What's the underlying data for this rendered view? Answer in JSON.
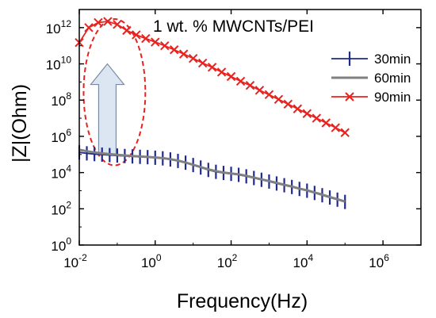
{
  "chart_data": {
    "type": "line",
    "title": "1 wt. % MWCNTs/PEI",
    "xlabel": "Frequency(Hz)",
    "ylabel": "|Z|(Ohm)",
    "x_scale": "log",
    "y_scale": "log",
    "xlim": [
      0.01,
      10000000
    ],
    "ylim": [
      1,
      10000000000000
    ],
    "x_ticks": [
      {
        "value": 0.01,
        "base": "10",
        "exp": "-2"
      },
      {
        "value": 1,
        "base": "10",
        "exp": "0"
      },
      {
        "value": 100,
        "base": "10",
        "exp": "2"
      },
      {
        "value": 10000,
        "base": "10",
        "exp": "4"
      },
      {
        "value": 1000000,
        "base": "10",
        "exp": "6"
      }
    ],
    "y_ticks": [
      {
        "value": 1,
        "base": "10",
        "exp": "0"
      },
      {
        "value": 100,
        "base": "10",
        "exp": "2"
      },
      {
        "value": 10000,
        "base": "10",
        "exp": "4"
      },
      {
        "value": 1000000,
        "base": "10",
        "exp": "6"
      },
      {
        "value": 100000000,
        "base": "10",
        "exp": "8"
      },
      {
        "value": 10000000000,
        "base": "10",
        "exp": "10"
      },
      {
        "value": 1000000000000,
        "base": "10",
        "exp": "12"
      }
    ],
    "grid": false,
    "legend_position": "top-right",
    "series": [
      {
        "name": "30min",
        "color": "#1f2a8c",
        "marker": "vertical-bar",
        "x": [
          0.01,
          0.0158,
          0.0251,
          0.0398,
          0.0631,
          0.1,
          0.158,
          0.251,
          0.398,
          0.631,
          1,
          1.58,
          2.51,
          3.98,
          6.31,
          10,
          15.8,
          25.1,
          39.8,
          63.1,
          100,
          158,
          251,
          398,
          631,
          1000,
          1580,
          2510,
          3980,
          6310,
          10000,
          15800,
          25100,
          39800,
          63100,
          100000
        ],
        "y": [
          130000,
          115000,
          105000,
          98000,
          92000,
          87000,
          82000,
          78000,
          74000,
          71000,
          66000,
          61000,
          53000,
          44000,
          35000,
          26000,
          19000,
          14000,
          11000,
          9500,
          8500,
          7500,
          6200,
          5000,
          4000,
          3200,
          2500,
          2000,
          1600,
          1250,
          1000,
          750,
          560,
          420,
          320,
          240
        ]
      },
      {
        "name": "60min",
        "color": "#808080",
        "marker": "none",
        "x": [
          0.01,
          0.0158,
          0.0251,
          0.0398,
          0.0631,
          0.1,
          0.158,
          0.251,
          0.398,
          0.631,
          1,
          1.58,
          2.51,
          3.98,
          6.31,
          10,
          15.8,
          25.1,
          39.8,
          63.1,
          100,
          158,
          251,
          398,
          631,
          1000,
          1580,
          2510,
          3980,
          6310,
          10000,
          15800,
          25100,
          39800,
          63100,
          100000
        ],
        "y": [
          180000,
          150000,
          130000,
          115000,
          104000,
          95000,
          88000,
          82000,
          77000,
          73000,
          68000,
          63000,
          55000,
          46000,
          36000,
          27000,
          20000,
          15000,
          12000,
          10000,
          9000,
          8000,
          6600,
          5300,
          4200,
          3400,
          2700,
          2100,
          1700,
          1300,
          1050,
          800,
          600,
          450,
          340,
          250
        ]
      },
      {
        "name": "90min",
        "color": "#e8221e",
        "marker": "x",
        "x": [
          0.01,
          0.0178,
          0.0316,
          0.0562,
          0.1,
          0.178,
          0.316,
          0.562,
          1,
          1.78,
          3.16,
          5.62,
          10,
          17.8,
          31.6,
          56.2,
          100,
          178,
          316,
          562,
          1000,
          1780,
          3160,
          5620,
          10000,
          17800,
          31600,
          56200,
          100000
        ],
        "y": [
          150000000000,
          1000000000000,
          1900000000000,
          2200000000000,
          1500000000000,
          700000000000,
          400000000000,
          250000000000,
          160000000000,
          100000000000,
          60000000000,
          35000000000,
          20000000000,
          11000000000,
          6500000000,
          3500000000,
          2000000000,
          1100000000,
          650000000,
          350000000,
          200000000,
          110000000,
          60000000,
          33000000,
          18000000,
          10000000,
          5500000,
          3000000,
          1600000
        ]
      }
    ],
    "annotations": [
      {
        "type": "arrow",
        "direction": "up",
        "x": 0.055,
        "y_from": 100000,
        "y_to": 10000000000,
        "fill": "#dce6f2",
        "stroke": "#7a8aa0"
      },
      {
        "type": "ellipse",
        "x_center": 0.085,
        "y_center": 3000000,
        "x_span": [
          0.013,
          0.55
        ],
        "y_span": [
          25000,
          3000000000000
        ],
        "stroke": "#e8221e",
        "style": "dashed"
      }
    ]
  }
}
